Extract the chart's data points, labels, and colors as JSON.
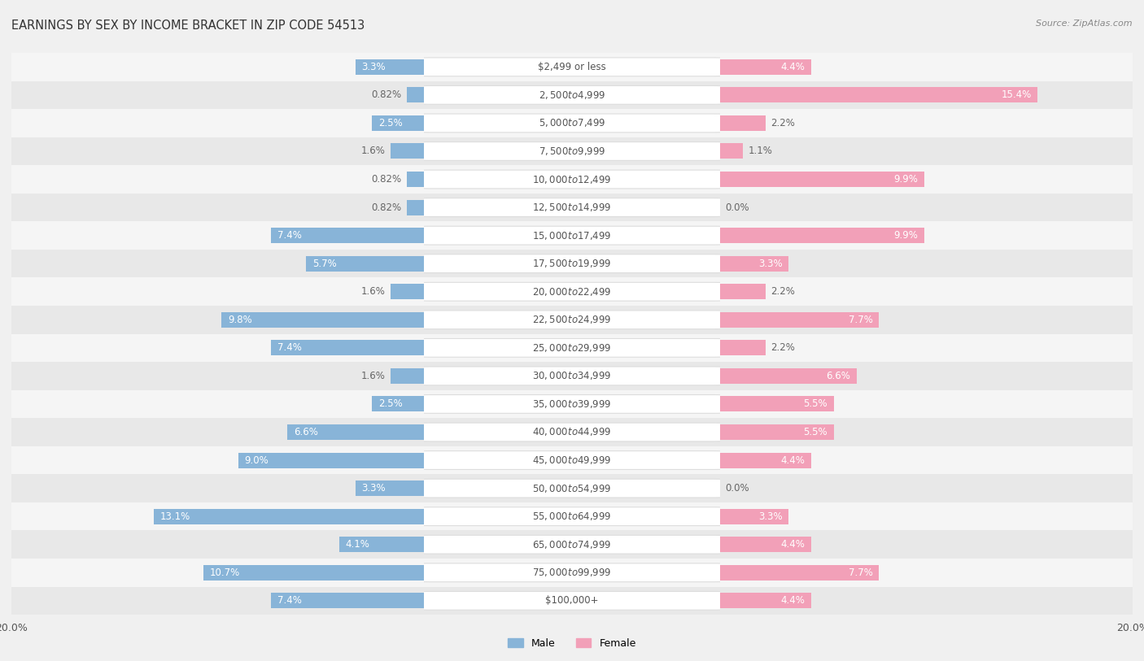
{
  "title": "EARNINGS BY SEX BY INCOME BRACKET IN ZIP CODE 54513",
  "source": "Source: ZipAtlas.com",
  "categories": [
    "$2,499 or less",
    "$2,500 to $4,999",
    "$5,000 to $7,499",
    "$7,500 to $9,999",
    "$10,000 to $12,499",
    "$12,500 to $14,999",
    "$15,000 to $17,499",
    "$17,500 to $19,999",
    "$20,000 to $22,499",
    "$22,500 to $24,999",
    "$25,000 to $29,999",
    "$30,000 to $34,999",
    "$35,000 to $39,999",
    "$40,000 to $44,999",
    "$45,000 to $49,999",
    "$50,000 to $54,999",
    "$55,000 to $64,999",
    "$65,000 to $74,999",
    "$75,000 to $99,999",
    "$100,000+"
  ],
  "male_values": [
    3.3,
    0.82,
    2.5,
    1.6,
    0.82,
    0.82,
    7.4,
    5.7,
    1.6,
    9.8,
    7.4,
    1.6,
    2.5,
    6.6,
    9.0,
    3.3,
    13.1,
    4.1,
    10.7,
    7.4
  ],
  "female_values": [
    4.4,
    15.4,
    2.2,
    1.1,
    9.9,
    0.0,
    9.9,
    3.3,
    2.2,
    7.7,
    2.2,
    6.6,
    5.5,
    5.5,
    4.4,
    0.0,
    3.3,
    4.4,
    7.7,
    4.4
  ],
  "male_color": "#88b4d8",
  "female_color": "#f2a0b8",
  "label_color_inside": "#ffffff",
  "label_color_outside": "#666666",
  "cat_label_color": "#555555",
  "cat_bg_color": "#ffffff",
  "cat_border_color": "#dddddd",
  "background_color": "#f0f0f0",
  "row_bg_odd": "#e8e8e8",
  "row_bg_even": "#f5f5f5",
  "axis_max": 20.0,
  "title_fontsize": 10.5,
  "label_fontsize": 8.5,
  "category_fontsize": 8.5,
  "source_fontsize": 8
}
